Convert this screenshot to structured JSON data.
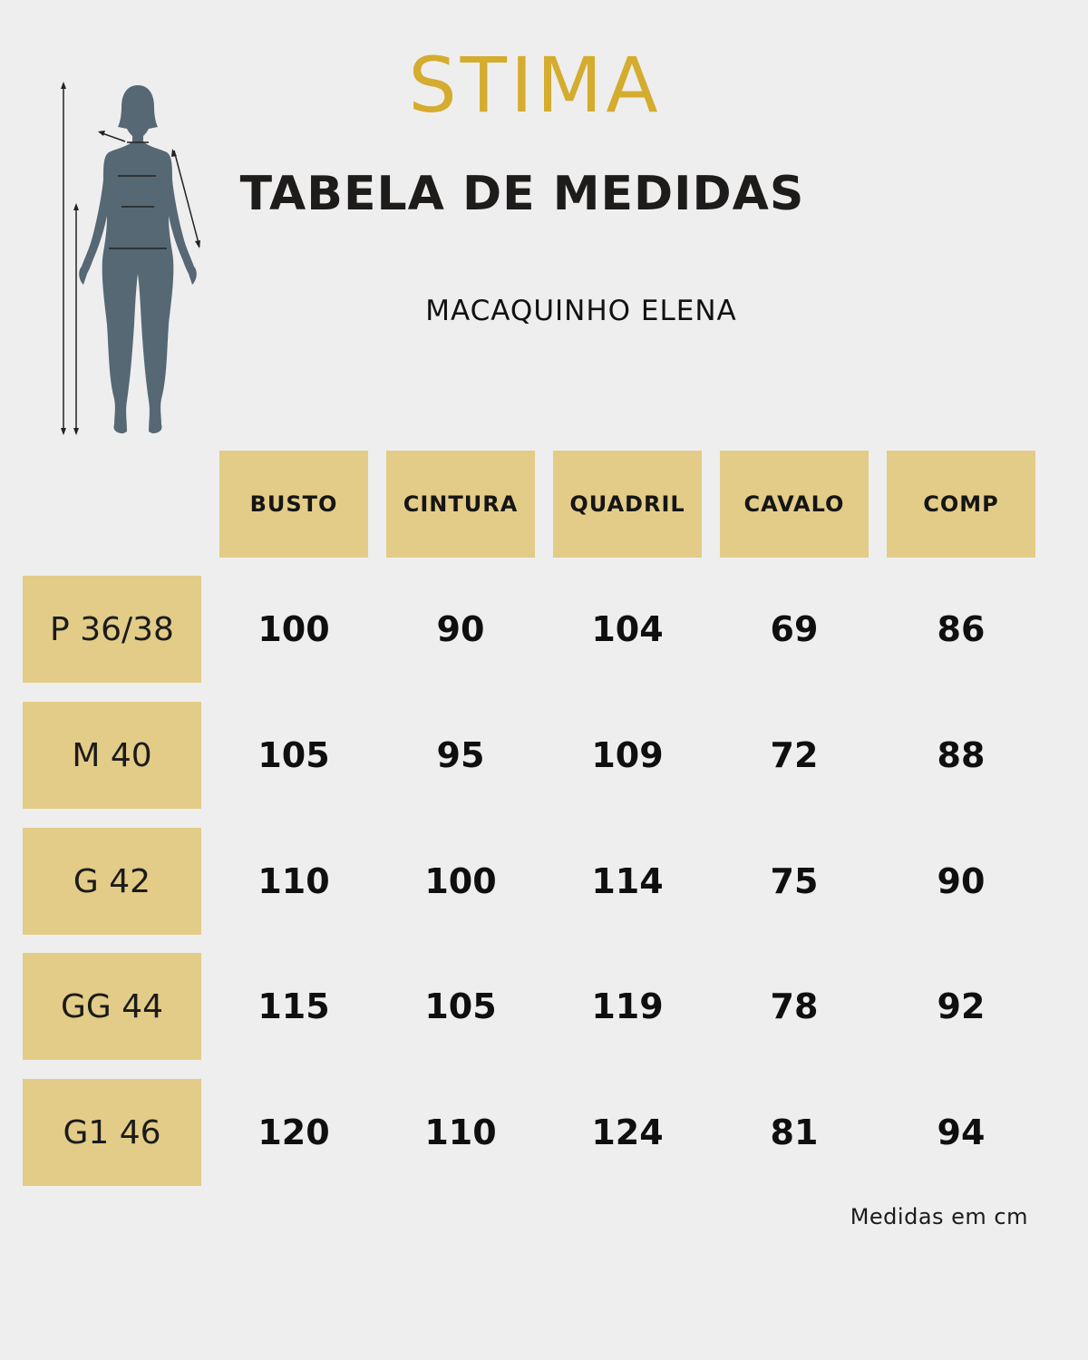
{
  "brand": "STIMA",
  "title": "TABELA DE MEDIDAS",
  "subtitle": "MACAQUINHO ELENA",
  "footnote": "Medidas em cm",
  "colors": {
    "background": "#efeeee",
    "brand": "#d4ac2e",
    "cell_fill": "#e2cc87",
    "figure": "#566873"
  },
  "figure_icon": "body-measurement-figure-icon",
  "table": {
    "headers": [
      "BUSTO",
      "CINTURA",
      "QUADRIL",
      "CAVALO",
      "COMP"
    ],
    "rows": [
      {
        "size": "P 36/38",
        "values": [
          "100",
          "90",
          "104",
          "69",
          "86"
        ]
      },
      {
        "size": "M 40",
        "values": [
          "105",
          "95",
          "109",
          "72",
          "88"
        ]
      },
      {
        "size": "G 42",
        "values": [
          "110",
          "100",
          "114",
          "75",
          "90"
        ]
      },
      {
        "size": "GG 44",
        "values": [
          "115",
          "105",
          "119",
          "78",
          "92"
        ]
      },
      {
        "size": "G1 46",
        "values": [
          "120",
          "110",
          "124",
          "81",
          "94"
        ]
      }
    ]
  }
}
